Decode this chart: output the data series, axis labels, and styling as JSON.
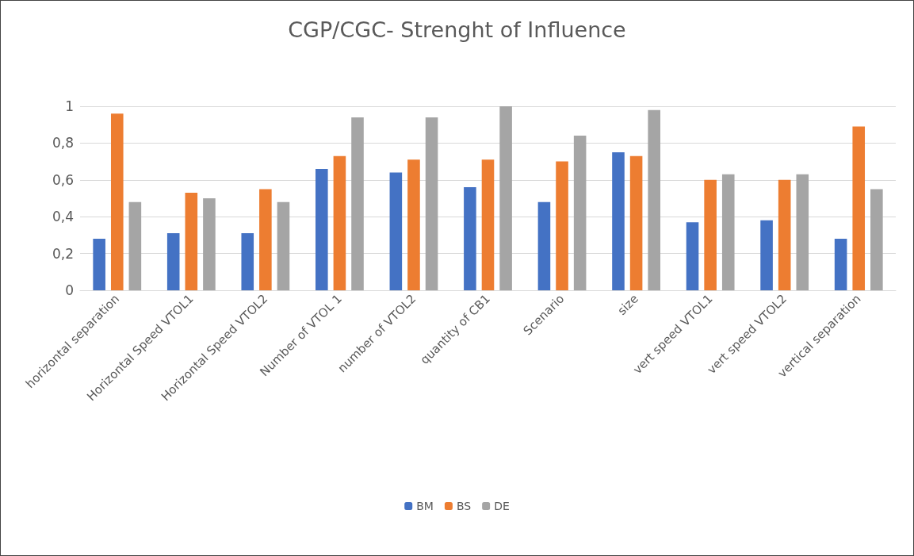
{
  "chart_data": {
    "type": "bar",
    "title": "CGP/CGC- Strenght of Influence",
    "categories": [
      "horizontal separation",
      "Horizontal Speed VTOL1",
      "Horizontal Speed VTOL2",
      "Number of VTOL 1",
      "number of VTOL2",
      "quantity of CB1",
      "Scenario",
      "size",
      "vert speed VTOL1",
      "vert speed VTOL2",
      "vertical separation"
    ],
    "series": [
      {
        "name": "BM",
        "color": "#4472c4",
        "values": [
          0.28,
          0.31,
          0.31,
          0.66,
          0.64,
          0.56,
          0.48,
          0.75,
          0.37,
          0.38,
          0.28
        ]
      },
      {
        "name": "BS",
        "color": "#ed7d31",
        "values": [
          0.96,
          0.53,
          0.55,
          0.73,
          0.71,
          0.71,
          0.7,
          0.73,
          0.6,
          0.6,
          0.89
        ]
      },
      {
        "name": "DE",
        "color": "#a5a5a5",
        "values": [
          0.48,
          0.5,
          0.48,
          0.94,
          0.94,
          1.0,
          0.84,
          0.98,
          0.63,
          0.63,
          0.55
        ]
      }
    ],
    "ylim": [
      0,
      1
    ],
    "yticks": [
      0,
      {
        "value": 0.2,
        "label": "0,2"
      },
      {
        "value": 0.4,
        "label": "0,4"
      },
      {
        "value": 0.6,
        "label": "0,6"
      },
      {
        "value": 0.8,
        "label": "0,8"
      },
      1
    ],
    "grid": "y",
    "legend": "bottom"
  }
}
